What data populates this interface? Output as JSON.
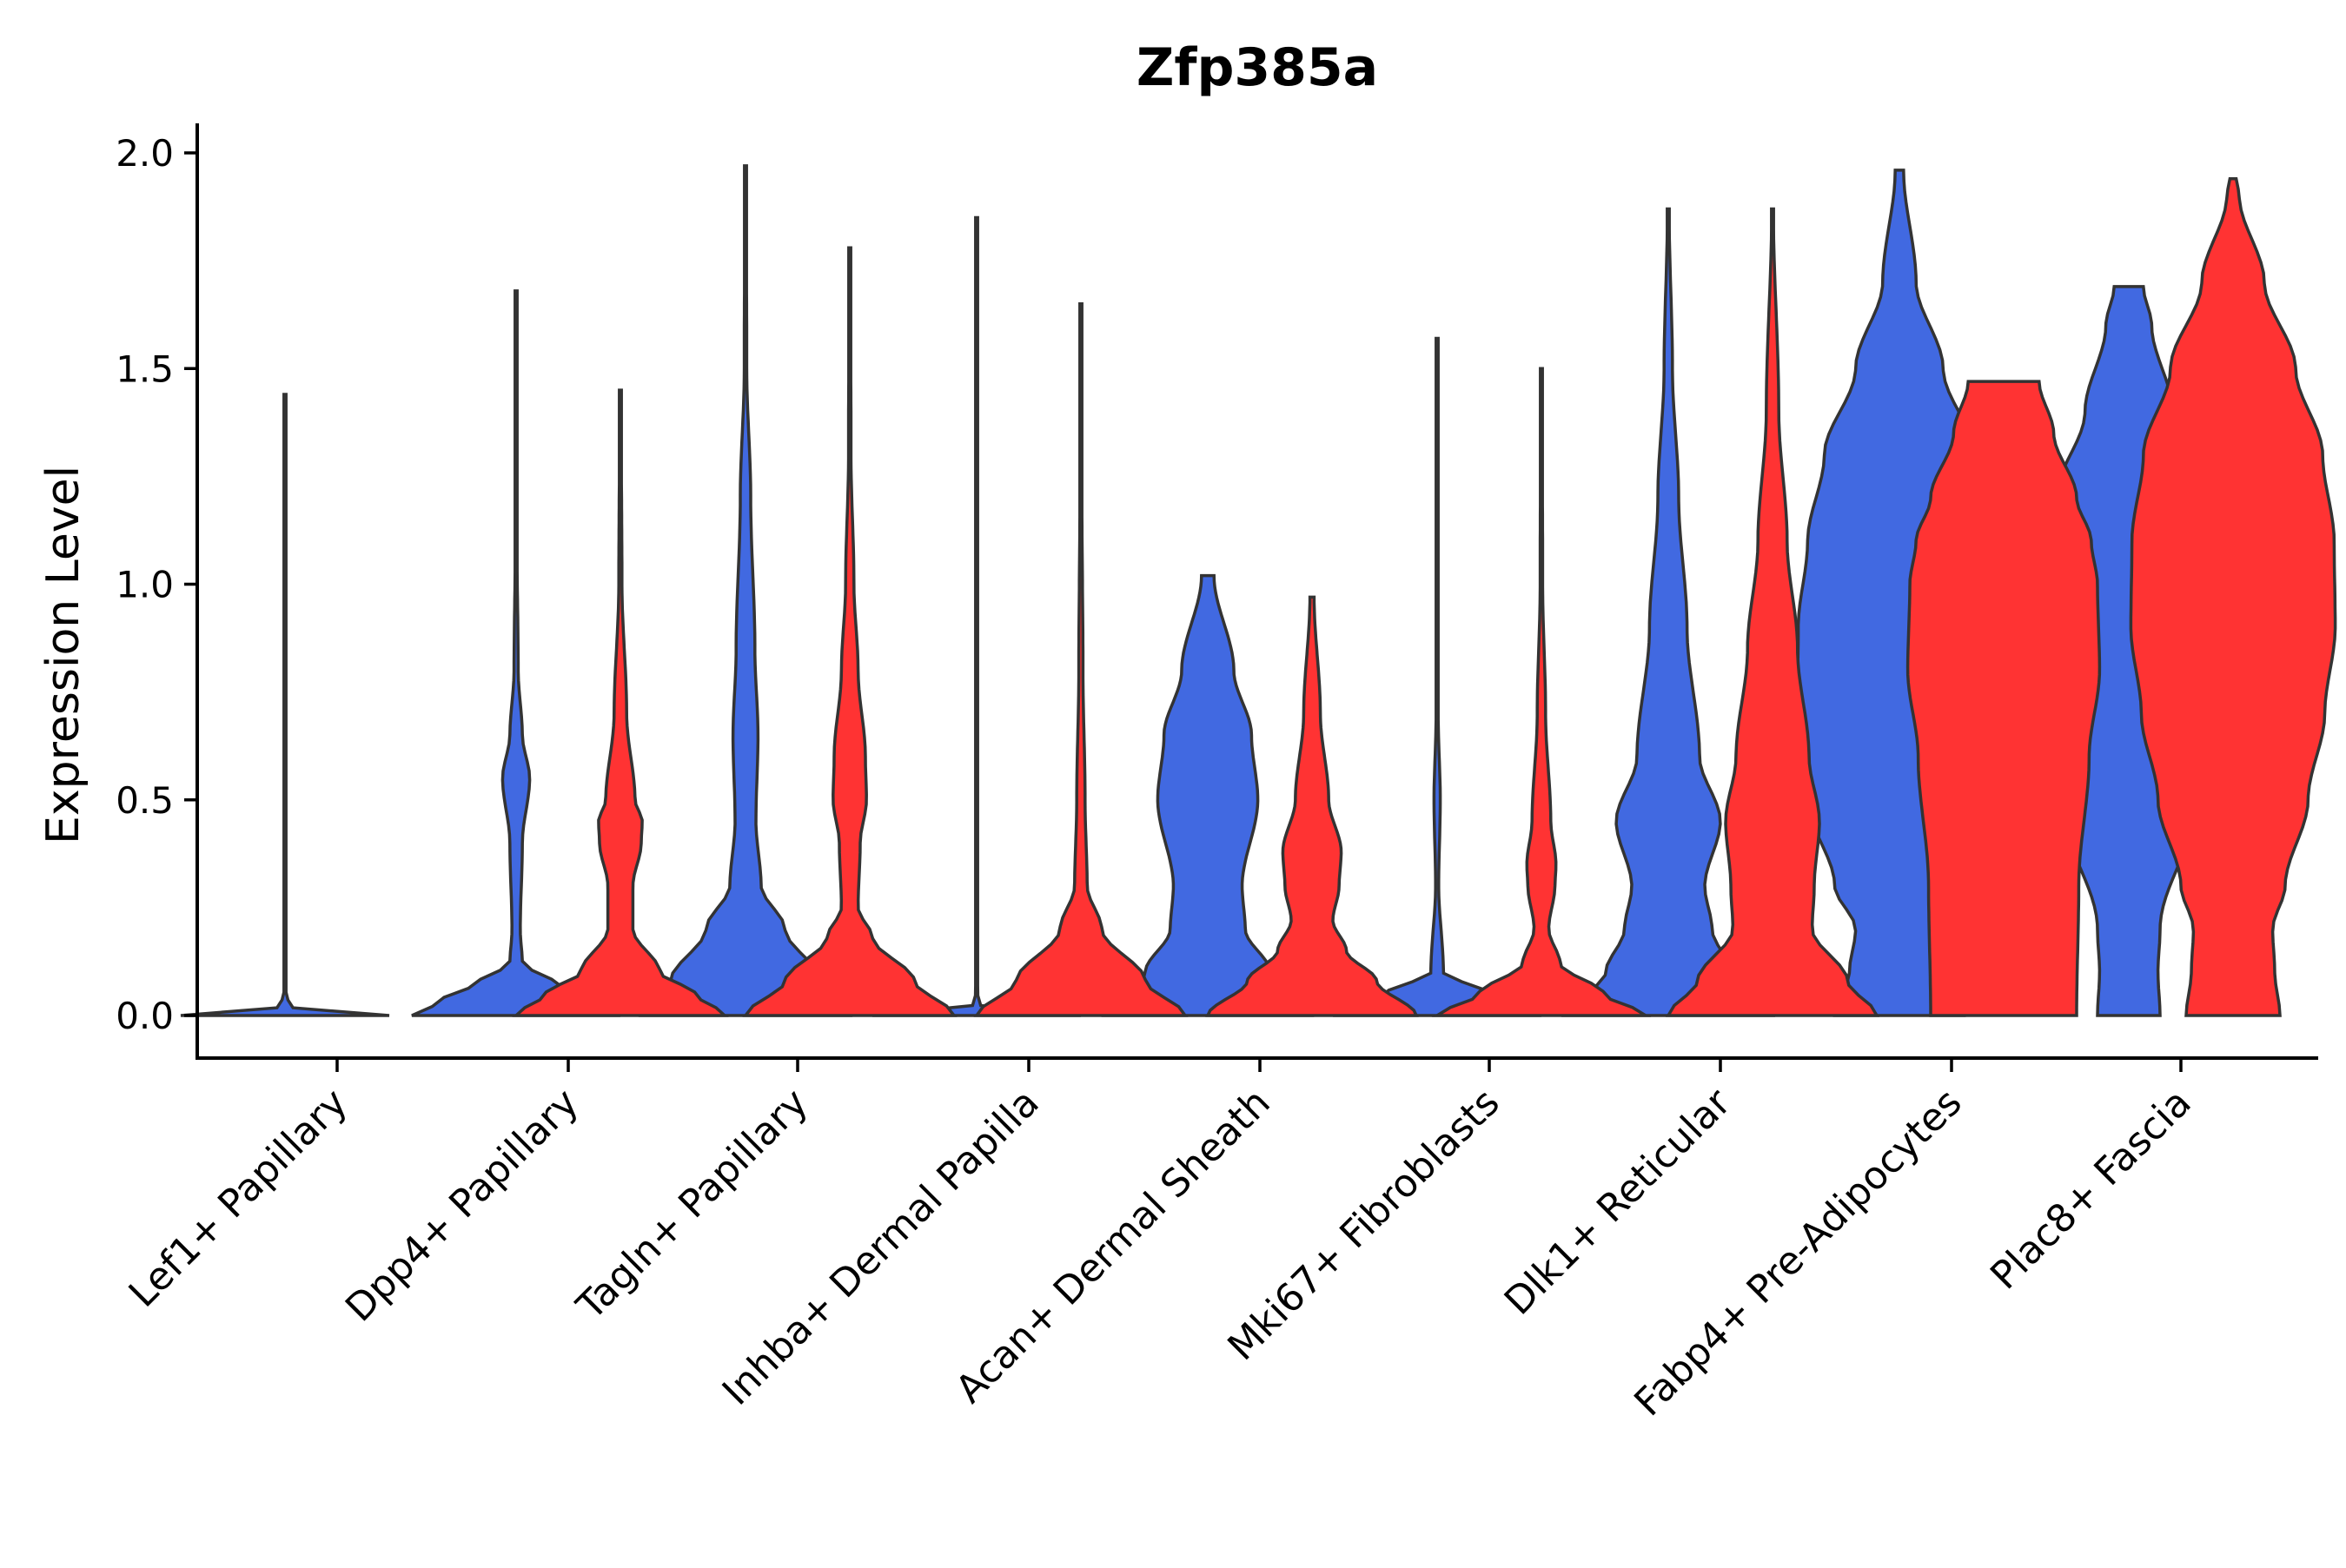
{
  "chart_data": {
    "type": "violin",
    "title": "Zfp385a",
    "xlabel": "",
    "ylabel": "Expression Level",
    "ylim": [
      -0.1,
      2.07
    ],
    "yticks": [
      "0.0",
      "0.5",
      "1.0",
      "1.5",
      "2.0"
    ],
    "ytick_values": [
      0.0,
      0.5,
      1.0,
      1.5,
      2.0
    ],
    "colors": {
      "blue": "#4169E1",
      "red": "#FF3333",
      "outline": "#333333"
    },
    "categories": [
      "Lef1+ Papillary",
      "Dpp4+ Papillary",
      "Tagln+ Papillary",
      "Inhba+ Dermal Papilla",
      "Acan+ Dermal Sheath",
      "Mki67+ Fibroblasts",
      "Dlk1+ Reticular",
      "Fabp4+ Pre-Adipocytes",
      "Plac8+ Fascia"
    ],
    "series": [
      {
        "name": "blue",
        "color": "#4169E1",
        "violins": [
          {
            "category": "Lef1+ Papillary",
            "max": 1.44,
            "profile": [
              [
                0,
                1.0
              ],
              [
                0.02,
                0.05
              ],
              [
                0.05,
                0.01
              ],
              [
                0.3,
                0.006
              ],
              [
                0.7,
                0.004
              ],
              [
                1.44,
                0.002
              ]
            ]
          },
          {
            "category": "Dpp4+ Papillary",
            "max": 1.68,
            "profile": [
              [
                0,
                1.0
              ],
              [
                0.03,
                0.75
              ],
              [
                0.08,
                0.35
              ],
              [
                0.12,
                0.06
              ],
              [
                0.2,
                0.04
              ],
              [
                0.4,
                0.06
              ],
              [
                0.55,
                0.13
              ],
              [
                0.65,
                0.06
              ],
              [
                0.8,
                0.02
              ],
              [
                1.1,
                0.008
              ],
              [
                1.68,
                0.006
              ]
            ]
          },
          {
            "category": "Tagln+ Papillary",
            "max": 1.97,
            "profile": [
              [
                0,
                1.0
              ],
              [
                0.08,
                0.72
              ],
              [
                0.2,
                0.38
              ],
              [
                0.3,
                0.15
              ],
              [
                0.45,
                0.1
              ],
              [
                0.65,
                0.12
              ],
              [
                0.85,
                0.09
              ],
              [
                1.2,
                0.05
              ],
              [
                1.5,
                0.012
              ],
              [
                1.97,
                0.006
              ]
            ]
          },
          {
            "category": "Inhba+ Dermal Papilla",
            "max": 1.85,
            "profile": [
              [
                0,
                1.0
              ],
              [
                0.02,
                0.04
              ],
              [
                0.05,
                0.01
              ],
              [
                1.0,
                0.006
              ],
              [
                1.85,
                0.004
              ]
            ]
          },
          {
            "category": "Acan+ Dermal Sheath",
            "max": 1.02,
            "profile": [
              [
                0,
                1.0
              ],
              [
                0.1,
                0.6
              ],
              [
                0.2,
                0.36
              ],
              [
                0.3,
                0.33
              ],
              [
                0.5,
                0.48
              ],
              [
                0.65,
                0.42
              ],
              [
                0.8,
                0.25
              ],
              [
                1.02,
                0.06
              ]
            ]
          },
          {
            "category": "Mki67+ Fibroblasts",
            "max": 1.57,
            "profile": [
              [
                0,
                1.0
              ],
              [
                0.05,
                0.5
              ],
              [
                0.1,
                0.06
              ],
              [
                0.3,
                0.015
              ],
              [
                0.5,
                0.03
              ],
              [
                0.7,
                0.01
              ],
              [
                1.0,
                0.008
              ],
              [
                1.57,
                0.006
              ]
            ]
          },
          {
            "category": "Dlk1+ Reticular",
            "max": 1.87,
            "profile": [
              [
                0,
                1.0
              ],
              [
                0.1,
                0.6
              ],
              [
                0.2,
                0.42
              ],
              [
                0.3,
                0.35
              ],
              [
                0.45,
                0.5
              ],
              [
                0.6,
                0.3
              ],
              [
                0.9,
                0.18
              ],
              [
                1.2,
                0.1
              ],
              [
                1.5,
                0.04
              ],
              [
                1.87,
                0.008
              ]
            ]
          },
          {
            "category": "Fabp4+ Pre-Adipocytes",
            "max": 1.96,
            "profile": [
              [
                0,
                0.62
              ],
              [
                0.1,
                0.48
              ],
              [
                0.2,
                0.42
              ],
              [
                0.3,
                0.62
              ],
              [
                0.5,
                0.88
              ],
              [
                0.7,
                0.98
              ],
              [
                0.9,
                0.97
              ],
              [
                1.1,
                0.88
              ],
              [
                1.3,
                0.72
              ],
              [
                1.5,
                0.42
              ],
              [
                1.7,
                0.16
              ],
              [
                1.96,
                0.04
              ]
            ]
          },
          {
            "category": "Plac8+ Fascia",
            "max": 1.69,
            "profile": [
              [
                0,
                0.3
              ],
              [
                0.1,
                0.28
              ],
              [
                0.2,
                0.3
              ],
              [
                0.5,
                0.66
              ],
              [
                0.7,
                0.88
              ],
              [
                0.85,
                0.98
              ],
              [
                1.0,
                0.95
              ],
              [
                1.2,
                0.7
              ],
              [
                1.4,
                0.42
              ],
              [
                1.6,
                0.22
              ],
              [
                1.69,
                0.14
              ]
            ]
          }
        ]
      },
      {
        "name": "red",
        "color": "#FF3333",
        "violins": [
          {
            "category": "Dpp4+ Papillary",
            "max": 1.45,
            "profile": [
              [
                0,
                1.0
              ],
              [
                0.05,
                0.72
              ],
              [
                0.1,
                0.38
              ],
              [
                0.2,
                0.12
              ],
              [
                0.3,
                0.12
              ],
              [
                0.4,
                0.2
              ],
              [
                0.45,
                0.21
              ],
              [
                0.5,
                0.14
              ],
              [
                0.7,
                0.06
              ],
              [
                1.0,
                0.015
              ],
              [
                1.45,
                0.006
              ]
            ]
          },
          {
            "category": "Tagln+ Papillary",
            "max": 1.78,
            "profile": [
              [
                0,
                1.0
              ],
              [
                0.08,
                0.62
              ],
              [
                0.18,
                0.22
              ],
              [
                0.25,
                0.08
              ],
              [
                0.4,
                0.1
              ],
              [
                0.5,
                0.16
              ],
              [
                0.6,
                0.15
              ],
              [
                0.8,
                0.08
              ],
              [
                1.0,
                0.04
              ],
              [
                1.3,
                0.012
              ],
              [
                1.78,
                0.006
              ]
            ]
          },
          {
            "category": "Inhba+ Dermal Papilla",
            "max": 1.65,
            "profile": [
              [
                0,
                1.0
              ],
              [
                0.08,
                0.62
              ],
              [
                0.2,
                0.2
              ],
              [
                0.3,
                0.06
              ],
              [
                0.5,
                0.04
              ],
              [
                0.8,
                0.02
              ],
              [
                1.2,
                0.01
              ],
              [
                1.65,
                0.006
              ]
            ]
          },
          {
            "category": "Acan+ Dermal Sheath",
            "max": 0.97,
            "profile": [
              [
                0,
                1.0
              ],
              [
                0.08,
                0.62
              ],
              [
                0.15,
                0.33
              ],
              [
                0.22,
                0.2
              ],
              [
                0.3,
                0.26
              ],
              [
                0.38,
                0.28
              ],
              [
                0.5,
                0.16
              ],
              [
                0.7,
                0.08
              ],
              [
                0.97,
                0.02
              ]
            ]
          },
          {
            "category": "Mki67+ Fibroblasts",
            "max": 1.5,
            "profile": [
              [
                0,
                1.0
              ],
              [
                0.05,
                0.6
              ],
              [
                0.12,
                0.18
              ],
              [
                0.2,
                0.07
              ],
              [
                0.3,
                0.13
              ],
              [
                0.35,
                0.14
              ],
              [
                0.45,
                0.09
              ],
              [
                0.7,
                0.04
              ],
              [
                1.0,
                0.012
              ],
              [
                1.5,
                0.006
              ]
            ]
          },
          {
            "category": "Dlk1+ Reticular",
            "max": 1.87,
            "profile": [
              [
                0,
                1.0
              ],
              [
                0.08,
                0.72
              ],
              [
                0.2,
                0.38
              ],
              [
                0.3,
                0.4
              ],
              [
                0.45,
                0.45
              ],
              [
                0.6,
                0.35
              ],
              [
                0.85,
                0.24
              ],
              [
                1.1,
                0.14
              ],
              [
                1.4,
                0.06
              ],
              [
                1.87,
                0.008
              ]
            ]
          },
          {
            "category": "Fabp4+ Pre-Adipocytes",
            "max": 1.47,
            "profile": [
              [
                0,
                0.7
              ],
              [
                0.3,
                0.72
              ],
              [
                0.6,
                0.82
              ],
              [
                0.8,
                0.92
              ],
              [
                1.0,
                0.9
              ],
              [
                1.1,
                0.84
              ],
              [
                1.2,
                0.7
              ],
              [
                1.35,
                0.48
              ],
              [
                1.47,
                0.34
              ]
            ]
          },
          {
            "category": "Plac8+ Fascia",
            "max": 1.94,
            "profile": [
              [
                0,
                0.45
              ],
              [
                0.1,
                0.4
              ],
              [
                0.2,
                0.38
              ],
              [
                0.3,
                0.5
              ],
              [
                0.5,
                0.72
              ],
              [
                0.7,
                0.88
              ],
              [
                0.9,
                0.98
              ],
              [
                1.1,
                0.97
              ],
              [
                1.3,
                0.86
              ],
              [
                1.5,
                0.6
              ],
              [
                1.7,
                0.3
              ],
              [
                1.9,
                0.06
              ],
              [
                1.94,
                0.03
              ]
            ]
          }
        ]
      }
    ]
  }
}
